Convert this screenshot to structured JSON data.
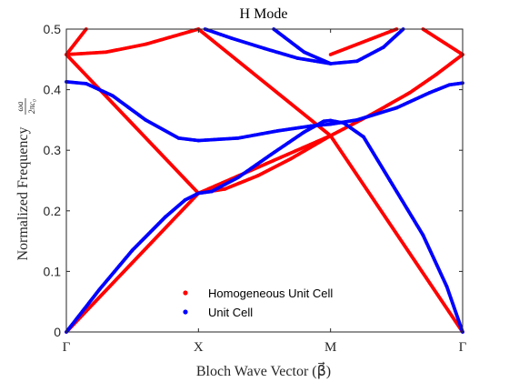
{
  "chart_data": {
    "type": "scatter",
    "title": "H Mode",
    "xlabel": "Bloch Wave Vector (β⃗)",
    "ylabel": "Normalized Frequency",
    "ylabel_fraction": {
      "numerator": "ωa",
      "denominator": "2πc₀"
    },
    "ylim": [
      0,
      0.5
    ],
    "yticks": [
      0,
      0.1,
      0.2,
      0.3,
      0.4,
      0.5
    ],
    "ytick_labels": [
      "0",
      "0.1",
      "0.2",
      "0.3",
      "0.4",
      "0.5"
    ],
    "xticks": [
      0,
      1,
      2,
      3
    ],
    "xtick_labels": [
      "Γ",
      "X",
      "M",
      "Γ"
    ],
    "legend_position": "bottom-center",
    "grid": false,
    "series": [
      {
        "name": "Homogeneous Unit Cell",
        "color": "#ff0000",
        "curves": [
          [
            [
              0,
              0
            ],
            [
              1,
              0.229
            ],
            [
              2,
              0.324
            ],
            [
              3,
              0
            ]
          ],
          [
            [
              0,
              0.458
            ],
            [
              1,
              0.229
            ]
          ],
          [
            [
              1,
              0.229
            ],
            [
              1.2,
              0.236
            ],
            [
              1.45,
              0.258
            ],
            [
              1.7,
              0.286
            ],
            [
              2,
              0.324
            ],
            [
              2.3,
              0.358
            ],
            [
              2.6,
              0.395
            ],
            [
              2.8,
              0.425
            ],
            [
              3,
              0.458
            ]
          ],
          [
            [
              0,
              0.458
            ],
            [
              0.3,
              0.462
            ],
            [
              0.6,
              0.475
            ],
            [
              1,
              0.5
            ]
          ],
          [
            [
              0,
              0.458
            ],
            [
              0.15,
              0.5
            ]
          ],
          [
            [
              1,
              0.5
            ],
            [
              2,
              0.324
            ]
          ],
          [
            [
              2,
              0.458
            ],
            [
              2.5,
              0.5
            ]
          ],
          [
            [
              2.7,
              0.5
            ],
            [
              3,
              0.458
            ]
          ]
        ]
      },
      {
        "name": "Unit Cell",
        "color": "#0000ff",
        "curves": [
          [
            [
              0,
              0
            ],
            [
              0.25,
              0.07
            ],
            [
              0.5,
              0.135
            ],
            [
              0.75,
              0.19
            ],
            [
              0.9,
              0.218
            ],
            [
              1,
              0.229
            ],
            [
              1.1,
              0.232
            ],
            [
              1.3,
              0.255
            ],
            [
              1.55,
              0.293
            ],
            [
              1.8,
              0.33
            ],
            [
              1.95,
              0.348
            ],
            [
              2,
              0.349
            ],
            [
              2.1,
              0.345
            ],
            [
              2.25,
              0.322
            ],
            [
              2.45,
              0.25
            ],
            [
              2.7,
              0.16
            ],
            [
              2.88,
              0.075
            ],
            [
              3,
              0
            ]
          ],
          [
            [
              0,
              0.413
            ],
            [
              0.15,
              0.41
            ],
            [
              0.35,
              0.39
            ],
            [
              0.6,
              0.35
            ],
            [
              0.85,
              0.32
            ],
            [
              1,
              0.316
            ],
            [
              1.3,
              0.32
            ],
            [
              1.6,
              0.332
            ],
            [
              1.85,
              0.34
            ],
            [
              2,
              0.343
            ],
            [
              2.2,
              0.35
            ],
            [
              2.5,
              0.37
            ],
            [
              2.75,
              0.395
            ],
            [
              2.9,
              0.408
            ],
            [
              3,
              0.411
            ]
          ],
          [
            [
              1.05,
              0.5
            ],
            [
              1.25,
              0.485
            ],
            [
              1.5,
              0.468
            ],
            [
              1.75,
              0.452
            ],
            [
              2,
              0.443
            ],
            [
              2.2,
              0.447
            ],
            [
              2.4,
              0.47
            ],
            [
              2.55,
              0.5
            ]
          ],
          [
            [
              1.57,
              0.5
            ],
            [
              1.8,
              0.462
            ],
            [
              2,
              0.443
            ]
          ]
        ]
      }
    ]
  }
}
